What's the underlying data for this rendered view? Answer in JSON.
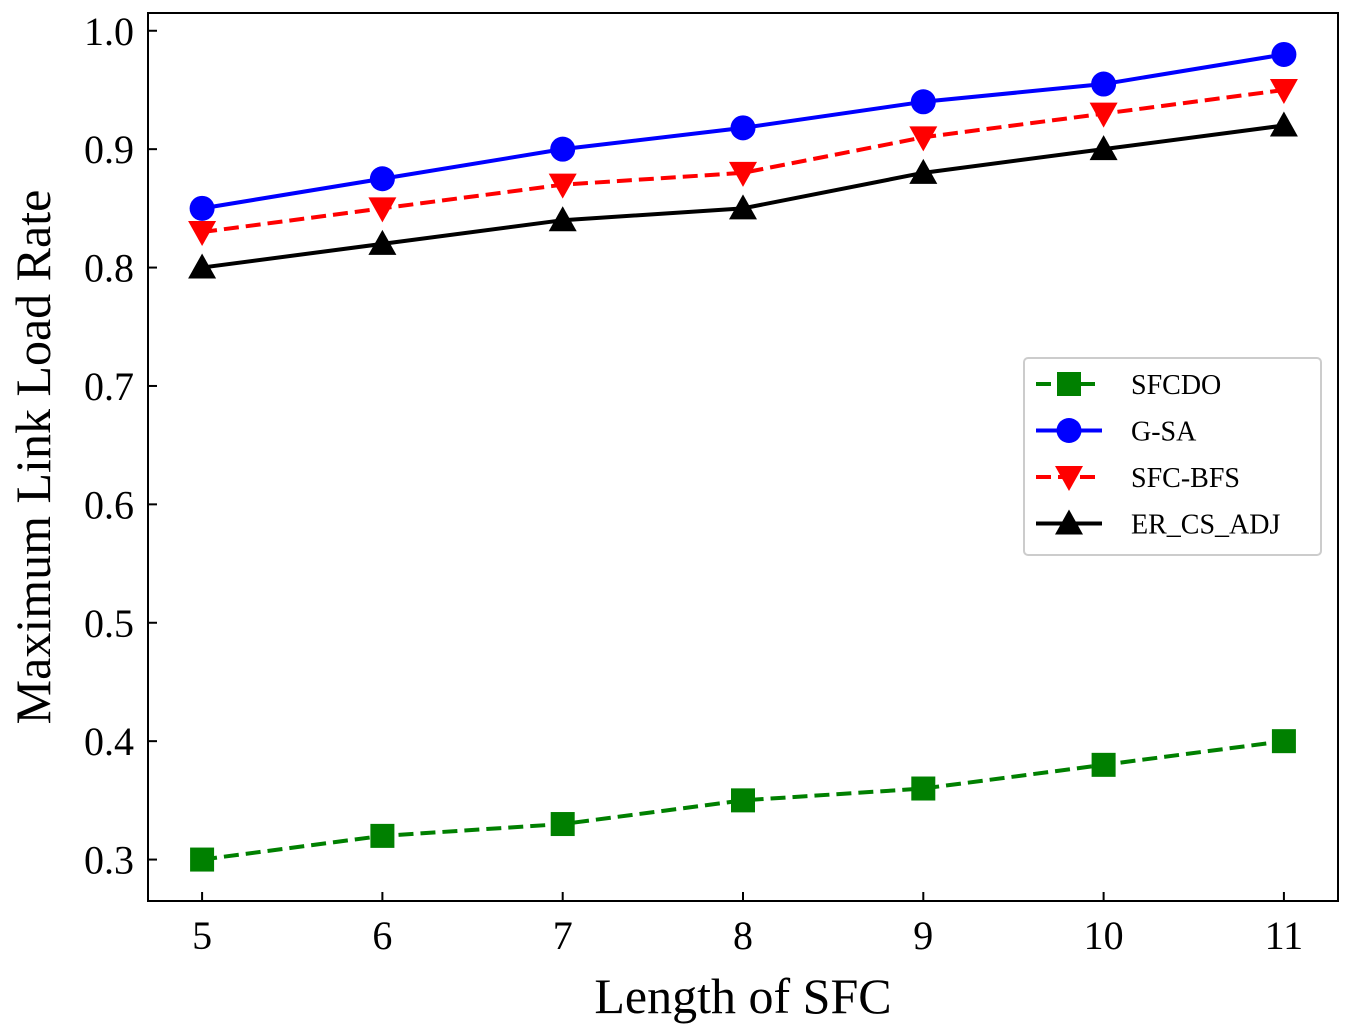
{
  "chart_data": {
    "type": "line",
    "title": "",
    "xlabel": "Length of SFC",
    "ylabel": "Maximum Link Load Rate",
    "x": [
      5,
      6,
      7,
      8,
      9,
      10,
      11
    ],
    "xticks": [
      "5",
      "6",
      "7",
      "8",
      "9",
      "10",
      "11"
    ],
    "yticks": [
      "0.3",
      "0.4",
      "0.5",
      "0.6",
      "0.7",
      "0.8",
      "0.9",
      "1.0"
    ],
    "xlim": [
      4.7,
      11.3
    ],
    "ylim": [
      0.265,
      1.015
    ],
    "grid": false,
    "legend_position": "center-right",
    "series": [
      {
        "name": "SFCDO",
        "color": "#008000",
        "marker": "square",
        "dashed": true,
        "values": [
          0.3,
          0.32,
          0.33,
          0.35,
          0.36,
          0.38,
          0.4
        ]
      },
      {
        "name": "G-SA",
        "color": "#0000ff",
        "marker": "circle",
        "dashed": false,
        "values": [
          0.85,
          0.875,
          0.9,
          0.918,
          0.94,
          0.955,
          0.98
        ]
      },
      {
        "name": "SFC-BFS",
        "color": "#ff0000",
        "marker": "triangle-down",
        "dashed": true,
        "values": [
          0.83,
          0.85,
          0.87,
          0.88,
          0.91,
          0.93,
          0.95
        ]
      },
      {
        "name": "ER_CS_ADJ",
        "color": "#000000",
        "marker": "triangle-up",
        "dashed": false,
        "values": [
          0.8,
          0.82,
          0.84,
          0.85,
          0.88,
          0.9,
          0.92
        ]
      }
    ]
  }
}
